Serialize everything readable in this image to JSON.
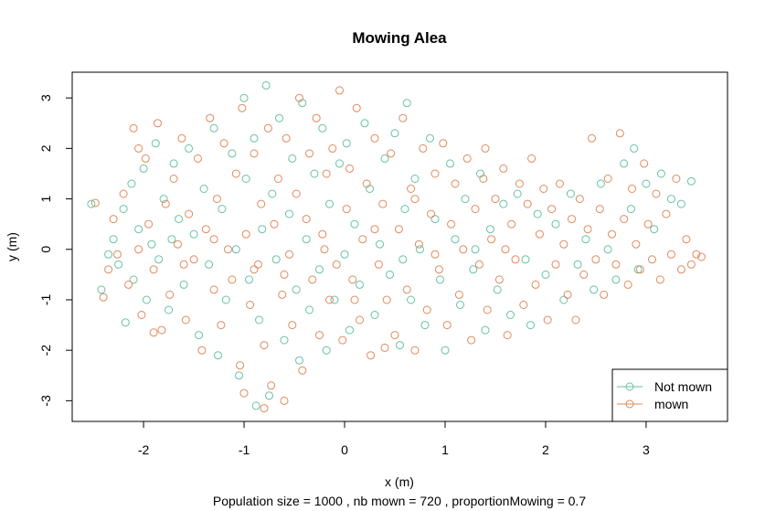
{
  "chart_data": {
    "type": "scatter",
    "title": "Mowing Alea",
    "xlabel": "x (m)",
    "ylabel": "y (m)",
    "subtitle": "Population size = 1000 , nb mown =  720 , proportionMowing  = 0.7",
    "xlim": [
      -2.71,
      3.81
    ],
    "ylim": [
      -3.41,
      3.51
    ],
    "xticks": [
      "-2",
      "-1",
      "0",
      "1",
      "2",
      "3"
    ],
    "yticks": [
      "-3",
      "-2",
      "-1",
      "0",
      "1",
      "2",
      "3"
    ],
    "grid": false,
    "legend_position": "bottom-right",
    "series": [
      {
        "name": "Not mown",
        "color": "#66c2a5",
        "points": [
          [
            -2.52,
            0.9
          ],
          [
            -2.42,
            -0.8
          ],
          [
            -2.3,
            0.2
          ],
          [
            -2.25,
            -0.3
          ],
          [
            -2.2,
            0.8
          ],
          [
            -2.18,
            -1.45
          ],
          [
            -2.12,
            1.3
          ],
          [
            -2.1,
            -0.6
          ],
          [
            -2.05,
            0.4
          ],
          [
            -2.0,
            1.6
          ],
          [
            -1.97,
            -1.0
          ],
          [
            -1.92,
            0.1
          ],
          [
            -1.88,
            2.1
          ],
          [
            -1.85,
            -0.2
          ],
          [
            -1.8,
            1.0
          ],
          [
            -1.75,
            -1.2
          ],
          [
            -1.7,
            1.7
          ],
          [
            -1.65,
            0.6
          ],
          [
            -1.6,
            -0.7
          ],
          [
            -1.55,
            2.0
          ],
          [
            -1.5,
            0.3
          ],
          [
            -1.45,
            -1.7
          ],
          [
            -1.4,
            1.2
          ],
          [
            -1.35,
            -0.3
          ],
          [
            -1.3,
            2.4
          ],
          [
            -1.26,
            -2.1
          ],
          [
            -1.22,
            0.8
          ],
          [
            -1.18,
            -1.0
          ],
          [
            -1.12,
            1.9
          ],
          [
            -1.08,
            0.0
          ],
          [
            -1.05,
            -2.5
          ],
          [
            -1.0,
            3.0
          ],
          [
            -0.98,
            1.4
          ],
          [
            -0.95,
            -0.6
          ],
          [
            -0.9,
            2.2
          ],
          [
            -0.85,
            -1.4
          ],
          [
            -0.82,
            0.4
          ],
          [
            -0.78,
            3.25
          ],
          [
            -0.75,
            -2.9
          ],
          [
            -0.72,
            1.1
          ],
          [
            -0.68,
            -0.2
          ],
          [
            -0.65,
            2.6
          ],
          [
            -0.6,
            -1.8
          ],
          [
            -0.55,
            0.7
          ],
          [
            -0.52,
            1.8
          ],
          [
            -0.48,
            -0.8
          ],
          [
            -0.45,
            -2.2
          ],
          [
            -0.42,
            2.9
          ],
          [
            -0.38,
            0.2
          ],
          [
            -0.35,
            -1.2
          ],
          [
            -0.3,
            1.5
          ],
          [
            -0.25,
            -0.4
          ],
          [
            -0.22,
            2.4
          ],
          [
            -0.18,
            -2.0
          ],
          [
            -0.15,
            0.9
          ],
          [
            -0.1,
            -1.0
          ],
          [
            -0.05,
            1.7
          ],
          [
            0.0,
            -0.1
          ],
          [
            0.02,
            2.1
          ],
          [
            0.05,
            -1.6
          ],
          [
            0.1,
            0.5
          ],
          [
            0.15,
            -0.7
          ],
          [
            0.2,
            2.5
          ],
          [
            0.25,
            1.2
          ],
          [
            0.3,
            -1.3
          ],
          [
            0.35,
            0.1
          ],
          [
            0.4,
            1.8
          ],
          [
            0.45,
            -0.5
          ],
          [
            0.5,
            2.3
          ],
          [
            0.55,
            -1.9
          ],
          [
            0.6,
            0.8
          ],
          [
            0.62,
            2.9
          ],
          [
            0.66,
            -1.0
          ],
          [
            0.7,
            1.4
          ],
          [
            0.75,
            0.0
          ],
          [
            0.8,
            -1.5
          ],
          [
            0.85,
            2.2
          ],
          [
            0.9,
            0.6
          ],
          [
            0.95,
            -0.6
          ],
          [
            1.0,
            -2.0
          ],
          [
            1.05,
            1.7
          ],
          [
            1.1,
            0.2
          ],
          [
            1.15,
            -1.1
          ],
          [
            1.2,
            1.0
          ],
          [
            1.28,
            -0.4
          ],
          [
            1.35,
            1.5
          ],
          [
            1.4,
            -1.6
          ],
          [
            1.45,
            0.4
          ],
          [
            1.52,
            -0.8
          ],
          [
            1.58,
            0.9
          ],
          [
            1.65,
            -1.3
          ],
          [
            1.72,
            1.1
          ],
          [
            1.8,
            -0.2
          ],
          [
            1.85,
            -1.5
          ],
          [
            1.92,
            0.7
          ],
          [
            2.0,
            -0.5
          ],
          [
            2.1,
            0.5
          ],
          [
            2.18,
            -1.0
          ],
          [
            2.25,
            1.1
          ],
          [
            2.32,
            -0.3
          ],
          [
            2.4,
            0.2
          ],
          [
            2.48,
            -0.8
          ],
          [
            2.55,
            1.3
          ],
          [
            2.62,
            0.0
          ],
          [
            2.7,
            -0.6
          ],
          [
            2.78,
            1.7
          ],
          [
            2.85,
            0.8
          ],
          [
            2.92,
            -0.4
          ],
          [
            3.0,
            1.3
          ],
          [
            3.08,
            0.4
          ],
          [
            3.15,
            1.5
          ],
          [
            3.25,
            1.0
          ],
          [
            3.35,
            0.9
          ],
          [
            3.45,
            1.35
          ],
          [
            2.88,
            2.0
          ],
          [
            -0.88,
            -3.1
          ],
          [
            -1.72,
            0.2
          ],
          [
            -2.35,
            -0.1
          ],
          [
            1.3,
            0.0
          ],
          [
            0.58,
            -0.2
          ]
        ]
      },
      {
        "name": "mown",
        "color": "#e08a5c",
        "points": [
          [
            -2.48,
            0.92
          ],
          [
            -2.4,
            -0.95
          ],
          [
            -2.35,
            -0.4
          ],
          [
            -2.3,
            0.6
          ],
          [
            -2.26,
            -0.1
          ],
          [
            -2.2,
            1.1
          ],
          [
            -2.15,
            -0.7
          ],
          [
            -2.1,
            2.4
          ],
          [
            -2.05,
            0.0
          ],
          [
            -2.02,
            -1.3
          ],
          [
            -1.98,
            1.8
          ],
          [
            -1.95,
            0.5
          ],
          [
            -1.9,
            -0.4
          ],
          [
            -1.86,
            2.5
          ],
          [
            -1.82,
            -1.6
          ],
          [
            -1.78,
            0.9
          ],
          [
            -1.74,
            -0.9
          ],
          [
            -1.7,
            1.4
          ],
          [
            -1.66,
            0.1
          ],
          [
            -1.62,
            2.2
          ],
          [
            -1.58,
            -1.4
          ],
          [
            -1.55,
            0.7
          ],
          [
            -1.5,
            -0.2
          ],
          [
            -1.46,
            1.8
          ],
          [
            -1.42,
            -2.0
          ],
          [
            -1.38,
            0.4
          ],
          [
            -1.34,
            2.6
          ],
          [
            -1.3,
            -0.8
          ],
          [
            -1.27,
            1.0
          ],
          [
            -1.23,
            -1.5
          ],
          [
            -1.2,
            2.1
          ],
          [
            -1.16,
            0.0
          ],
          [
            -1.12,
            -0.6
          ],
          [
            -1.08,
            1.5
          ],
          [
            -1.04,
            -2.3
          ],
          [
            -1.02,
            2.8
          ],
          [
            -0.98,
            0.3
          ],
          [
            -0.94,
            -1.1
          ],
          [
            -0.9,
            1.9
          ],
          [
            -0.86,
            -0.3
          ],
          [
            -0.83,
            0.9
          ],
          [
            -0.8,
            -1.9
          ],
          [
            -0.76,
            2.4
          ],
          [
            -0.73,
            -2.7
          ],
          [
            -0.7,
            0.5
          ],
          [
            -0.66,
            1.4
          ],
          [
            -0.62,
            -0.9
          ],
          [
            -0.58,
            2.2
          ],
          [
            -0.55,
            -0.1
          ],
          [
            -0.52,
            -1.5
          ],
          [
            -0.48,
            1.1
          ],
          [
            -0.45,
            3.0
          ],
          [
            -0.42,
            -2.4
          ],
          [
            -0.38,
            0.6
          ],
          [
            -0.35,
            1.9
          ],
          [
            -0.32,
            -0.6
          ],
          [
            -0.28,
            2.6
          ],
          [
            -0.25,
            -1.7
          ],
          [
            -0.22,
            0.3
          ],
          [
            -0.18,
            1.5
          ],
          [
            -0.15,
            -1.0
          ],
          [
            -0.12,
            2.0
          ],
          [
            -0.08,
            -0.3
          ],
          [
            -0.05,
            3.15
          ],
          [
            -0.02,
            -1.8
          ],
          [
            0.02,
            0.8
          ],
          [
            0.05,
            1.6
          ],
          [
            0.08,
            -0.6
          ],
          [
            0.12,
            2.8
          ],
          [
            0.15,
            -1.4
          ],
          [
            0.18,
            0.2
          ],
          [
            0.22,
            1.3
          ],
          [
            0.26,
            -2.1
          ],
          [
            0.3,
            2.2
          ],
          [
            0.34,
            -0.3
          ],
          [
            0.38,
            0.9
          ],
          [
            0.42,
            -1.0
          ],
          [
            0.46,
            1.9
          ],
          [
            0.5,
            -1.7
          ],
          [
            0.54,
            0.4
          ],
          [
            0.58,
            2.6
          ],
          [
            0.62,
            -0.8
          ],
          [
            0.66,
            1.2
          ],
          [
            0.7,
            -2.0
          ],
          [
            0.74,
            0.1
          ],
          [
            0.78,
            2.0
          ],
          [
            0.82,
            -1.2
          ],
          [
            0.86,
            0.7
          ],
          [
            0.9,
            1.5
          ],
          [
            0.94,
            -0.4
          ],
          [
            0.98,
            2.1
          ],
          [
            1.02,
            -1.5
          ],
          [
            1.06,
            0.5
          ],
          [
            1.1,
            1.3
          ],
          [
            1.14,
            -0.9
          ],
          [
            1.18,
            0.0
          ],
          [
            1.22,
            1.8
          ],
          [
            1.26,
            -1.8
          ],
          [
            1.3,
            0.8
          ],
          [
            1.34,
            -0.3
          ],
          [
            1.38,
            1.4
          ],
          [
            1.42,
            -1.2
          ],
          [
            1.46,
            0.2
          ],
          [
            1.5,
            1.0
          ],
          [
            1.54,
            -0.6
          ],
          [
            1.58,
            1.6
          ],
          [
            1.62,
            -1.7
          ],
          [
            1.66,
            0.5
          ],
          [
            1.7,
            -0.2
          ],
          [
            1.74,
            1.3
          ],
          [
            1.78,
            -1.1
          ],
          [
            1.82,
            0.9
          ],
          [
            1.86,
            1.8
          ],
          [
            1.9,
            -0.7
          ],
          [
            1.94,
            0.3
          ],
          [
            1.98,
            1.2
          ],
          [
            2.02,
            -1.4
          ],
          [
            2.06,
            0.8
          ],
          [
            2.1,
            -0.3
          ],
          [
            2.14,
            1.3
          ],
          [
            2.18,
            0.1
          ],
          [
            2.22,
            -0.9
          ],
          [
            2.26,
            0.6
          ],
          [
            2.3,
            -1.4
          ],
          [
            2.34,
            1.0
          ],
          [
            2.38,
            -0.5
          ],
          [
            2.42,
            0.4
          ],
          [
            2.46,
            2.2
          ],
          [
            2.5,
            -0.2
          ],
          [
            2.54,
            0.8
          ],
          [
            2.58,
            -0.9
          ],
          [
            2.62,
            1.4
          ],
          [
            2.66,
            0.3
          ],
          [
            2.7,
            -0.3
          ],
          [
            2.74,
            2.3
          ],
          [
            2.78,
            0.6
          ],
          [
            2.82,
            -0.7
          ],
          [
            2.86,
            1.2
          ],
          [
            2.9,
            0.1
          ],
          [
            2.94,
            -0.4
          ],
          [
            2.98,
            1.7
          ],
          [
            3.02,
            0.5
          ],
          [
            3.06,
            -0.2
          ],
          [
            3.1,
            1.1
          ],
          [
            3.14,
            -0.6
          ],
          [
            3.2,
            0.7
          ],
          [
            3.25,
            -0.1
          ],
          [
            3.3,
            1.4
          ],
          [
            3.35,
            -0.4
          ],
          [
            3.4,
            0.2
          ],
          [
            3.45,
            -0.3
          ],
          [
            3.5,
            -0.1
          ],
          [
            3.55,
            -0.15
          ],
          [
            -0.8,
            -3.15
          ],
          [
            -1.0,
            -2.85
          ],
          [
            -0.6,
            -3.0
          ],
          [
            -1.9,
            -1.65
          ],
          [
            -2.05,
            2.0
          ],
          [
            0.4,
            -1.95
          ],
          [
            -1.6,
            -0.3
          ],
          [
            -0.2,
            0.0
          ],
          [
            0.3,
            0.4
          ],
          [
            -0.6,
            -0.5
          ],
          [
            0.9,
            -0.1
          ],
          [
            1.4,
            2.0
          ],
          [
            -1.3,
            0.2
          ],
          [
            -0.9,
            -0.4
          ],
          [
            0.1,
            -1.0
          ],
          [
            0.7,
            1.0
          ],
          [
            1.6,
            0.0
          ]
        ]
      }
    ]
  }
}
